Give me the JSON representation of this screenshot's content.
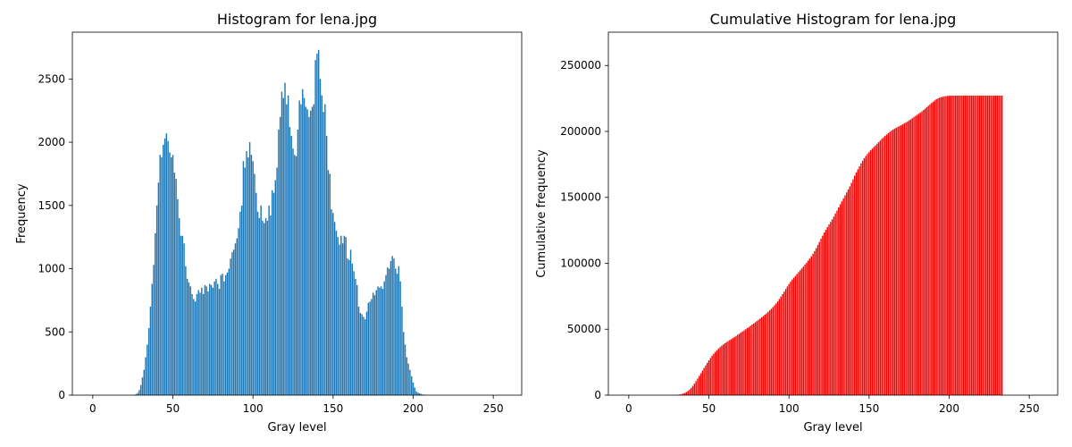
{
  "chart_data": [
    {
      "type": "bar",
      "title": "Histogram for lena.jpg",
      "xlabel": "Gray level",
      "ylabel": "Frequency",
      "xlim": [
        -12.75,
        267.75
      ],
      "ylim": [
        0,
        2870
      ],
      "xticks": [
        0,
        50,
        100,
        150,
        200,
        250
      ],
      "yticks": [
        0,
        500,
        1000,
        1500,
        2000,
        2500
      ],
      "color": "#1f77b4",
      "grid": false,
      "x_start": 0,
      "values": [
        0,
        0,
        0,
        0,
        0,
        0,
        0,
        0,
        0,
        0,
        0,
        0,
        0,
        0,
        0,
        0,
        0,
        0,
        0,
        0,
        0,
        0,
        0,
        0,
        0,
        1,
        3,
        8,
        18,
        40,
        80,
        140,
        200,
        300,
        400,
        530,
        700,
        880,
        1030,
        1280,
        1500,
        1680,
        1900,
        1880,
        1980,
        2030,
        2070,
        2010,
        1920,
        1880,
        1900,
        1760,
        1710,
        1550,
        1400,
        1260,
        1260,
        1200,
        1020,
        920,
        890,
        860,
        800,
        760,
        740,
        800,
        830,
        810,
        850,
        800,
        870,
        860,
        820,
        880,
        870,
        850,
        900,
        920,
        880,
        840,
        950,
        960,
        900,
        950,
        970,
        1000,
        1080,
        1130,
        1150,
        1200,
        1240,
        1320,
        1450,
        1500,
        1850,
        1800,
        1930,
        1880,
        2000,
        1900,
        1850,
        1750,
        1600,
        1450,
        1400,
        1500,
        1380,
        1360,
        1400,
        1380,
        1500,
        1420,
        1620,
        1600,
        1700,
        1800,
        2100,
        2200,
        2400,
        2350,
        2470,
        2300,
        2370,
        2120,
        2050,
        1950,
        1900,
        1890,
        2100,
        2330,
        2300,
        2420,
        2350,
        2280,
        2260,
        2200,
        2250,
        2280,
        2300,
        2650,
        2700,
        2730,
        2500,
        2370,
        2240,
        2300,
        2050,
        1780,
        1750,
        1470,
        1440,
        1370,
        1300,
        1250,
        1190,
        1260,
        1200,
        1260,
        1250,
        1080,
        1070,
        1150,
        1040,
        980,
        920,
        870,
        700,
        650,
        640,
        620,
        600,
        660,
        730,
        740,
        760,
        810,
        790,
        830,
        860,
        850,
        860,
        840,
        900,
        950,
        1010,
        1000,
        1060,
        1100,
        1080,
        1000,
        960,
        1020,
        900,
        700,
        500,
        400,
        300,
        250,
        200,
        150,
        100,
        60,
        30,
        20,
        15,
        10,
        5,
        3,
        1,
        1,
        0,
        0,
        0,
        0,
        0,
        0,
        0,
        0,
        0,
        0,
        0,
        0,
        0,
        0,
        0,
        0,
        0,
        0,
        0,
        0,
        0,
        0,
        0,
        0
      ]
    },
    {
      "type": "bar",
      "title": "Cumulative Histogram for lena.jpg",
      "xlabel": "Gray level",
      "ylabel": "Cumulative frequency",
      "xlim": [
        -12.75,
        267.75
      ],
      "ylim": [
        0,
        275251
      ],
      "xticks": [
        0,
        50,
        100,
        150,
        200,
        250
      ],
      "yticks": [
        0,
        50000,
        100000,
        150000,
        200000,
        250000
      ],
      "color": "#ff0000",
      "grid": false,
      "x_start": 0,
      "values": [
        0,
        0,
        0,
        0,
        0,
        0,
        0,
        0,
        0,
        0,
        0,
        0,
        0,
        0,
        0,
        0,
        0,
        0,
        0,
        0,
        0,
        0,
        0,
        0,
        0,
        1,
        4,
        12,
        30,
        70,
        150,
        290,
        490,
        790,
        1190,
        1720,
        2420,
        3300,
        4330,
        5610,
        7110,
        8790,
        10690,
        12570,
        14550,
        16580,
        18650,
        20660,
        22580,
        24460,
        26360,
        28120,
        29830,
        31380,
        32780,
        34040,
        35300,
        36500,
        37520,
        38440,
        39330,
        40190,
        40990,
        41750,
        42490,
        43290,
        44120,
        44930,
        45780,
        46580,
        47450,
        48310,
        49130,
        50010,
        50880,
        51730,
        52630,
        53550,
        54430,
        55270,
        56220,
        57180,
        58080,
        59030,
        60000,
        61000,
        62080,
        63210,
        64360,
        65560,
        66800,
        68120,
        69570,
        71070,
        72920,
        74720,
        76650,
        78530,
        80530,
        82430,
        84280,
        86030,
        87630,
        89080,
        90480,
        91980,
        93360,
        94720,
        96120,
        97500,
        99000,
        100420,
        102040,
        103640,
        105340,
        107140,
        109240,
        111440,
        113840,
        116190,
        118660,
        120960,
        123330,
        125450,
        127500,
        129450,
        131350,
        133240,
        135340,
        137670,
        139970,
        142390,
        144740,
        147020,
        149280,
        151480,
        153730,
        156010,
        158310,
        160960,
        163660,
        166390,
        168890,
        171260,
        173500,
        175800,
        177850,
        179630,
        181380,
        182850,
        184290,
        185660,
        186960,
        188210,
        189400,
        190660,
        191860,
        193120,
        194370,
        195450,
        196520,
        197670,
        198710,
        199690,
        200610,
        201480,
        202180,
        202830,
        203470,
        204090,
        204690,
        205350,
        206080,
        206820,
        207580,
        208390,
        209180,
        210010,
        210870,
        211720,
        212580,
        213420,
        214320,
        215270,
        216280,
        217280,
        218340,
        219440,
        220520,
        221520,
        222480,
        223500,
        224400,
        225100,
        225600,
        226000,
        226300,
        226550,
        226750,
        226900,
        227000,
        227060,
        227090,
        227110,
        227125,
        227135,
        227140,
        227143,
        227144,
        227145,
        227145,
        227145,
        227145,
        227145,
        227145,
        227145,
        227145,
        227145,
        227145,
        227145,
        227145,
        227145,
        227145,
        227145,
        227145,
        227145,
        227145,
        227145,
        227145,
        227145,
        227145,
        227145,
        227145,
        227145
      ]
    }
  ]
}
